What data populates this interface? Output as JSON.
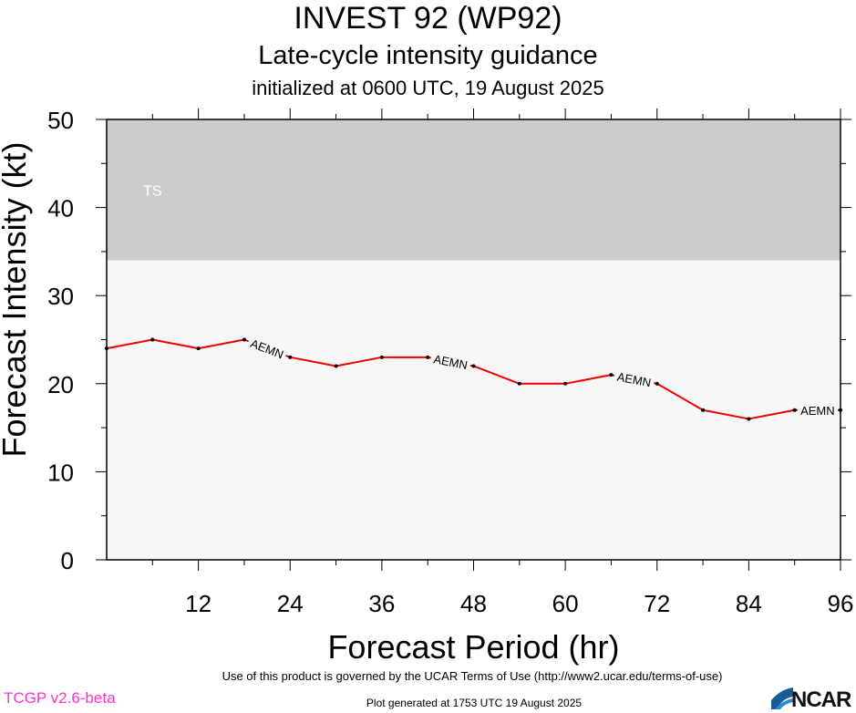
{
  "header": {
    "title": "INVEST 92 (WP92)",
    "subtitle": "Late-cycle intensity guidance",
    "init": "initialized at 0600 UTC, 19 August 2025"
  },
  "footer": {
    "terms": "Use of this product is governed by the UCAR Terms of Use (http://www2.ucar.edu/terms-of-use)",
    "version": "TCGP v2.6-beta",
    "generated": "Plot generated at 1753 UTC   19 August 2025",
    "logo": "NCAR"
  },
  "chart_data": {
    "type": "line",
    "title": "INVEST 92 (WP92)",
    "xlabel": "Forecast Period (hr)",
    "ylabel": "Forecast Intensity (kt)",
    "xlim": [
      0,
      96
    ],
    "ylim": [
      0,
      50
    ],
    "xticks": [
      12,
      24,
      36,
      48,
      60,
      72,
      84,
      96
    ],
    "yticks": [
      0,
      10,
      20,
      30,
      40,
      50
    ],
    "bands": [
      {
        "label": "TS",
        "y_from": 34,
        "y_to": 50,
        "color": "#cccccc"
      }
    ],
    "background_color": "#f7f7f7",
    "series": [
      {
        "name": "AEMN",
        "color": "#ee0000",
        "x": [
          0,
          6,
          12,
          18,
          24,
          30,
          36,
          42,
          48,
          54,
          60,
          66,
          72,
          78,
          84,
          90,
          96
        ],
        "y": [
          24,
          25,
          24,
          25,
          23,
          22,
          23,
          23,
          22,
          20,
          20,
          21,
          20,
          17,
          16,
          17,
          17
        ],
        "label_at_x": [
          18,
          42,
          66,
          90
        ]
      }
    ],
    "grid": false
  }
}
